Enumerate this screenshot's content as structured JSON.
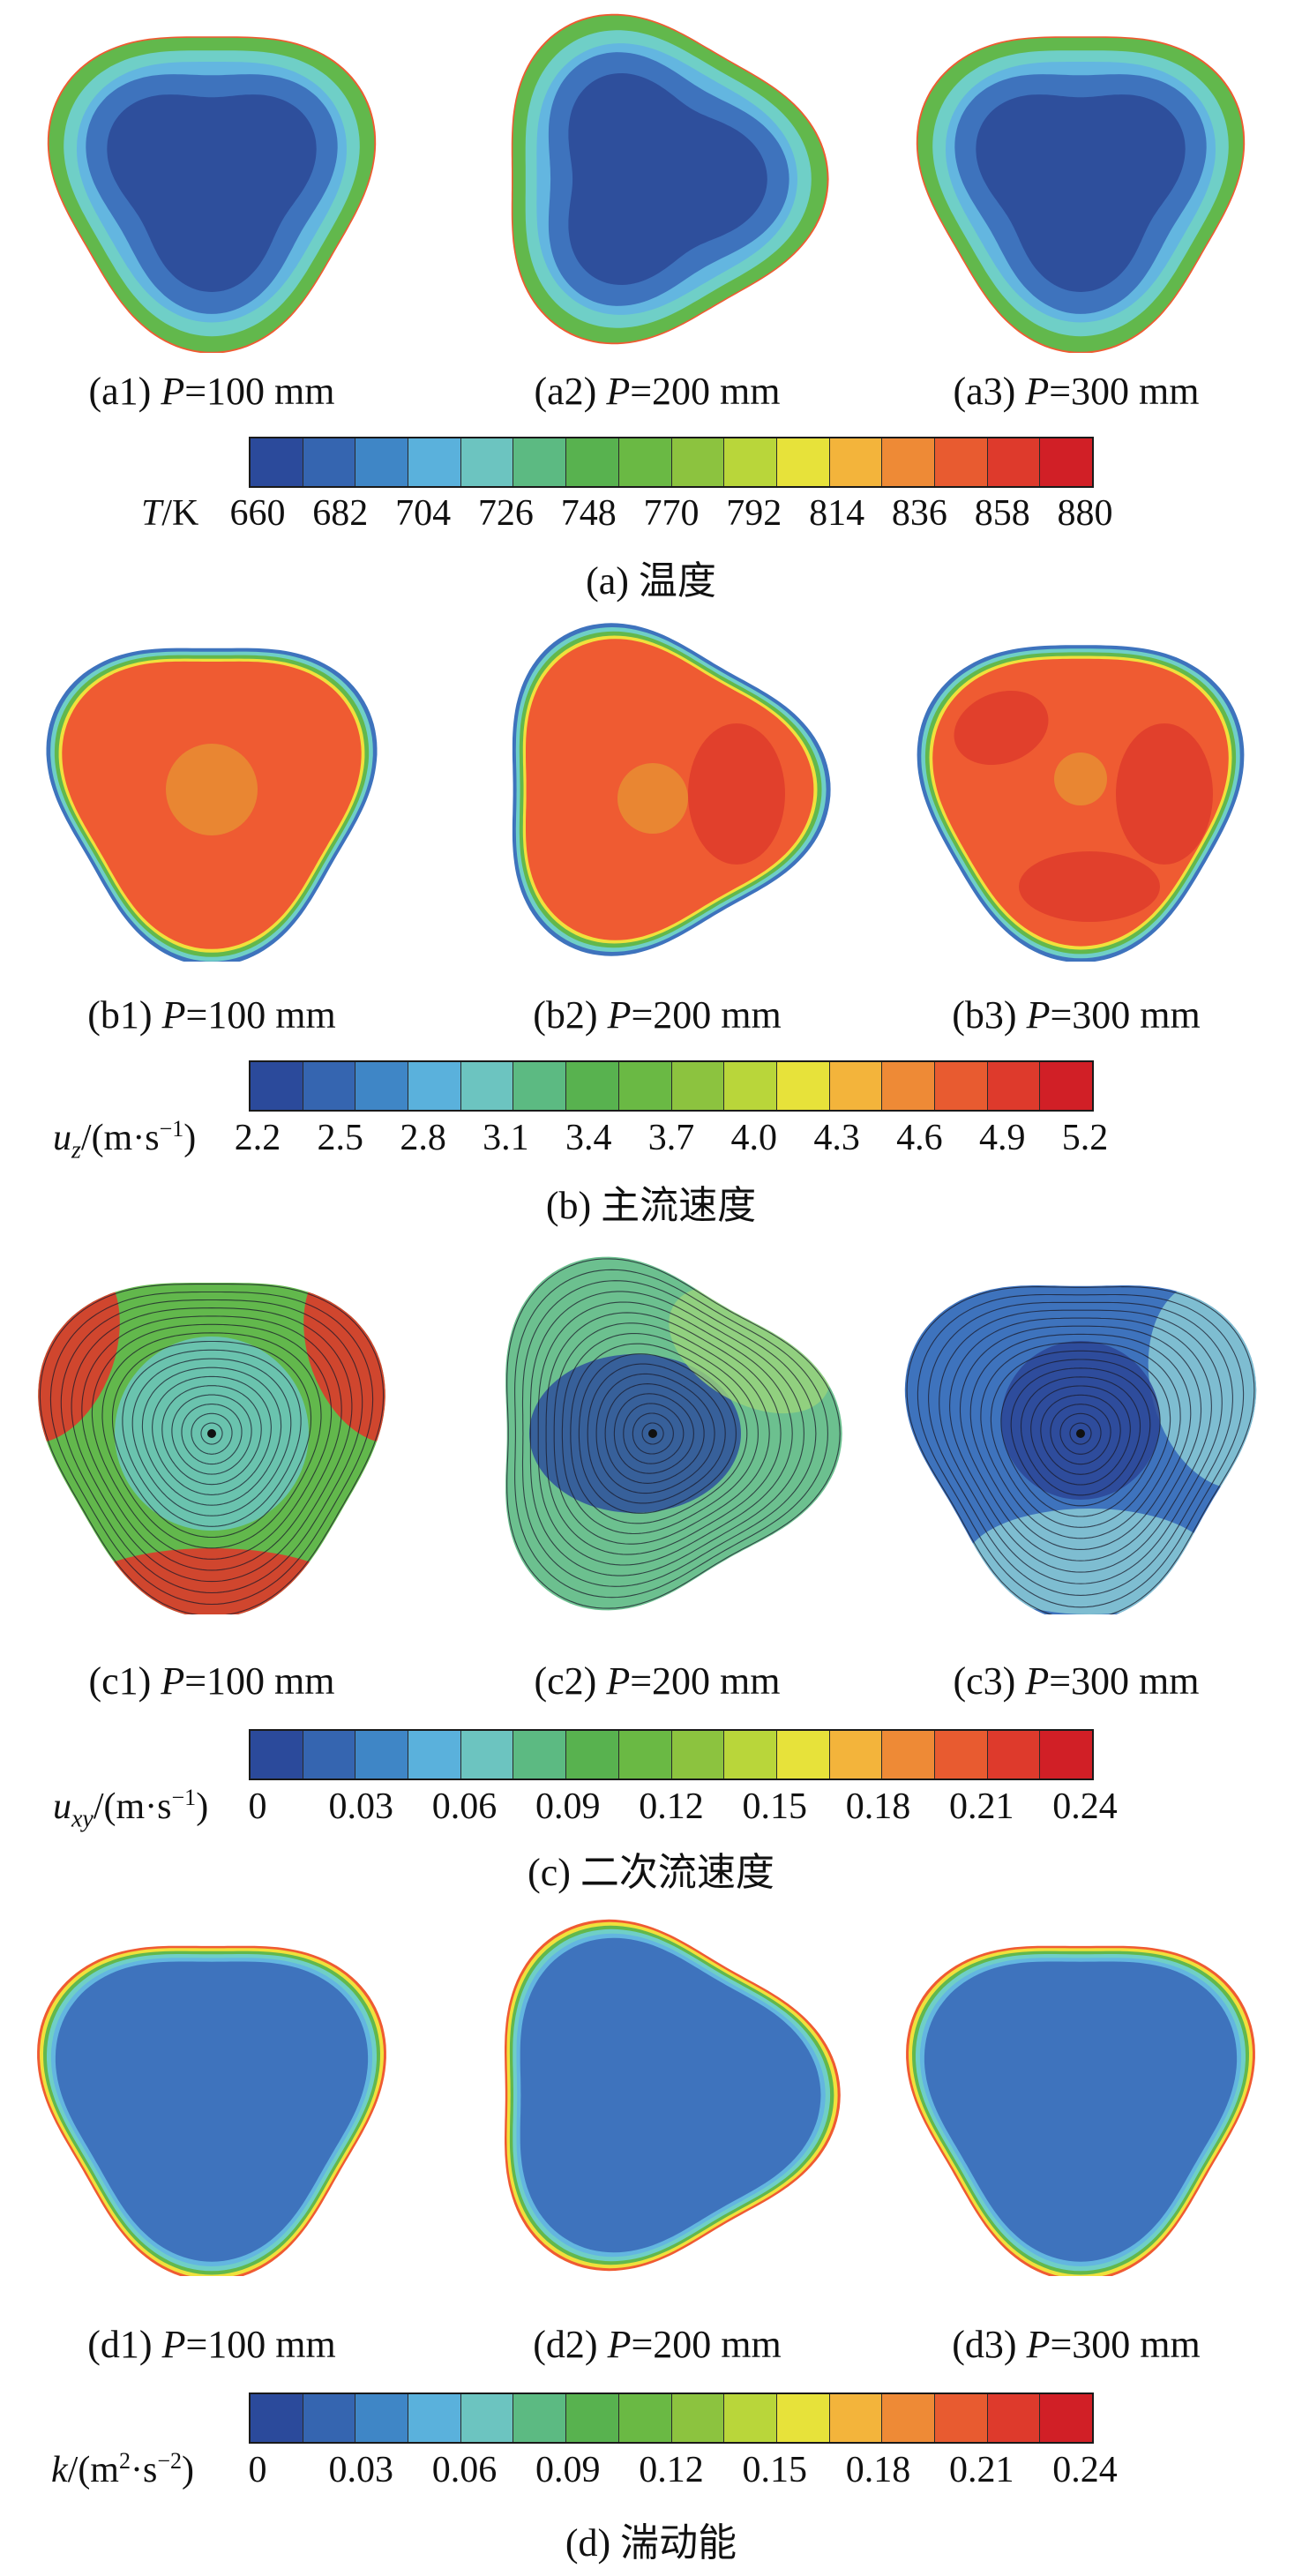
{
  "sections": [
    {
      "id": "a",
      "caption": "(a) 温度",
      "panels": [
        {
          "tag": "(a1)",
          "param": "P",
          "value": "=100 mm"
        },
        {
          "tag": "(a2)",
          "param": "P",
          "value": "=200 mm"
        },
        {
          "tag": "(a3)",
          "param": "P",
          "value": "=300 mm"
        }
      ],
      "colorbar": {
        "quantity_symbol": "T",
        "quantity_unit": "/K",
        "ticks": [
          "660",
          "682",
          "704",
          "726",
          "748",
          "770",
          "792",
          "814",
          "836",
          "858",
          "880"
        ]
      }
    },
    {
      "id": "b",
      "caption": "(b) 主流速度",
      "panels": [
        {
          "tag": "(b1)",
          "param": "P",
          "value": "=100 mm"
        },
        {
          "tag": "(b2)",
          "param": "P",
          "value": "=200 mm"
        },
        {
          "tag": "(b3)",
          "param": "P",
          "value": "=300 mm"
        }
      ],
      "colorbar": {
        "quantity_symbol": "u",
        "quantity_sub": "z",
        "quantity_unit": "/(m·s",
        "unit_sup": "−1",
        "unit_close": ")",
        "ticks": [
          "2.2",
          "2.5",
          "2.8",
          "3.1",
          "3.4",
          "3.7",
          "4.0",
          "4.3",
          "4.6",
          "4.9",
          "5.2"
        ]
      }
    },
    {
      "id": "c",
      "caption": "(c) 二次流速度",
      "panels": [
        {
          "tag": "(c1)",
          "param": "P",
          "value": "=100 mm"
        },
        {
          "tag": "(c2)",
          "param": "P",
          "value": "=200 mm"
        },
        {
          "tag": "(c3)",
          "param": "P",
          "value": "=300 mm"
        }
      ],
      "colorbar": {
        "quantity_symbol": "u",
        "quantity_sub": "xy",
        "quantity_unit": "/(m·s",
        "unit_sup": "−1",
        "unit_close": ")",
        "ticks": [
          "0",
          "0.03",
          "0.06",
          "0.09",
          "0.12",
          "0.15",
          "0.18",
          "0.21",
          "0.24"
        ]
      }
    },
    {
      "id": "d",
      "caption": "(d) 湍动能",
      "panels": [
        {
          "tag": "(d1)",
          "param": "P",
          "value": "=100 mm"
        },
        {
          "tag": "(d2)",
          "param": "P",
          "value": "=200 mm"
        },
        {
          "tag": "(d3)",
          "param": "P",
          "value": "=300 mm"
        }
      ],
      "colorbar": {
        "quantity_symbol": "k",
        "quantity_unit": "/(m",
        "unit_sup": "2",
        "unit_mid": "·s",
        "unit_sup2": "−2",
        "unit_close": ")",
        "ticks": [
          "0",
          "0.03",
          "0.06",
          "0.09",
          "0.12",
          "0.15",
          "0.18",
          "0.21",
          "0.24"
        ]
      }
    }
  ],
  "colormap": [
    "#2b4a9b",
    "#3565b0",
    "#3f86c6",
    "#5ab1dc",
    "#6cc4c0",
    "#5cba82",
    "#58b24f",
    "#6ab944",
    "#8cc33f",
    "#b9d63a",
    "#e7e23a",
    "#f3b43b",
    "#ee8a36",
    "#e85b30",
    "#de3a2c",
    "#d11f26"
  ],
  "field_colors": {
    "deep_blue": "#2e4f9c",
    "mid_blue": "#3e73bd",
    "light_blue": "#63b6e0",
    "cyan": "#6fcfc7",
    "green": "#62b84c",
    "yellow": "#f0e13c",
    "orange_red": "#ef5b32",
    "core_orange": "#e98632",
    "red": "#dd3a2b"
  }
}
